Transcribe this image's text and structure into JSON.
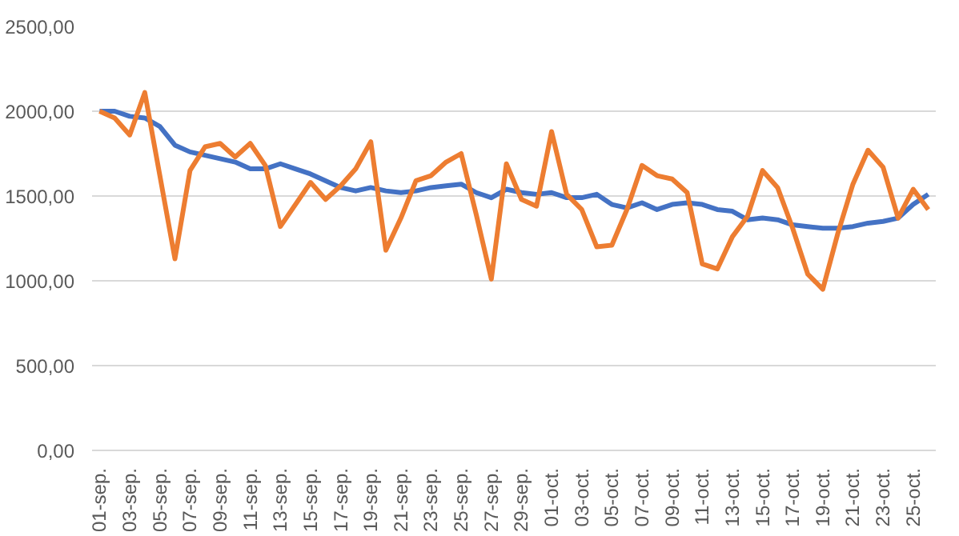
{
  "chart_data": {
    "type": "line",
    "categories": [
      "01-sep.",
      null,
      "03-sep.",
      null,
      "05-sep.",
      null,
      "07-sep.",
      null,
      "09-sep.",
      null,
      "11-sep.",
      null,
      "13-sep.",
      null,
      "15-sep.",
      null,
      "17-sep.",
      null,
      "19-sep.",
      null,
      "21-sep.",
      null,
      "23-sep.",
      null,
      "25-sep.",
      null,
      "27-sep.",
      null,
      "29-sep.",
      null,
      "01-oct.",
      null,
      "03-oct.",
      null,
      "05-oct.",
      null,
      "07-oct.",
      null,
      "09-oct.",
      null,
      "11-oct.",
      null,
      "13-oct.",
      null,
      "15-oct.",
      null,
      "17-oct.",
      null,
      "19-oct.",
      null,
      "21-oct.",
      null,
      "23-oct.",
      null,
      "25-oct.",
      null
    ],
    "series": [
      {
        "color": "#4472c4",
        "values": [
          2000,
          2000,
          1970,
          1960,
          1910,
          1800,
          1760,
          1740,
          1720,
          1700,
          1660,
          1660,
          1690,
          1660,
          1630,
          1590,
          1550,
          1530,
          1550,
          1530,
          1520,
          1530,
          1550,
          1560,
          1570,
          1520,
          1490,
          1540,
          1520,
          1510,
          1520,
          1490,
          1490,
          1510,
          1450,
          1430,
          1460,
          1420,
          1450,
          1460,
          1450,
          1420,
          1410,
          1360,
          1370,
          1360,
          1330,
          1320,
          1310,
          1310,
          1320,
          1340,
          1350,
          1370,
          1450,
          1510
        ]
      },
      {
        "color": "#ed7d31",
        "values": [
          2000,
          1960,
          1860,
          2110,
          1620,
          1130,
          1650,
          1790,
          1810,
          1730,
          1810,
          1680,
          1320,
          1450,
          1580,
          1480,
          1560,
          1660,
          1820,
          1180,
          1370,
          1590,
          1620,
          1700,
          1750,
          1390,
          1010,
          1690,
          1480,
          1440,
          1880,
          1510,
          1420,
          1200,
          1210,
          1420,
          1680,
          1620,
          1600,
          1520,
          1100,
          1070,
          1260,
          1380,
          1650,
          1550,
          1310,
          1040,
          950,
          1280,
          1570,
          1770,
          1670,
          1370,
          1540,
          1420
        ]
      }
    ],
    "ylim": [
      0,
      2500
    ],
    "yticks": [
      {
        "value": 0,
        "label": "0,00"
      },
      {
        "value": 500,
        "label": "500,00"
      },
      {
        "value": 1000,
        "label": "1000,00"
      },
      {
        "value": 1500,
        "label": "1500,00"
      },
      {
        "value": 2000,
        "label": "2000,00"
      },
      {
        "value": 2500,
        "label": "2500,00"
      }
    ],
    "grid": "y",
    "marker": "none",
    "line_style": "solid"
  }
}
